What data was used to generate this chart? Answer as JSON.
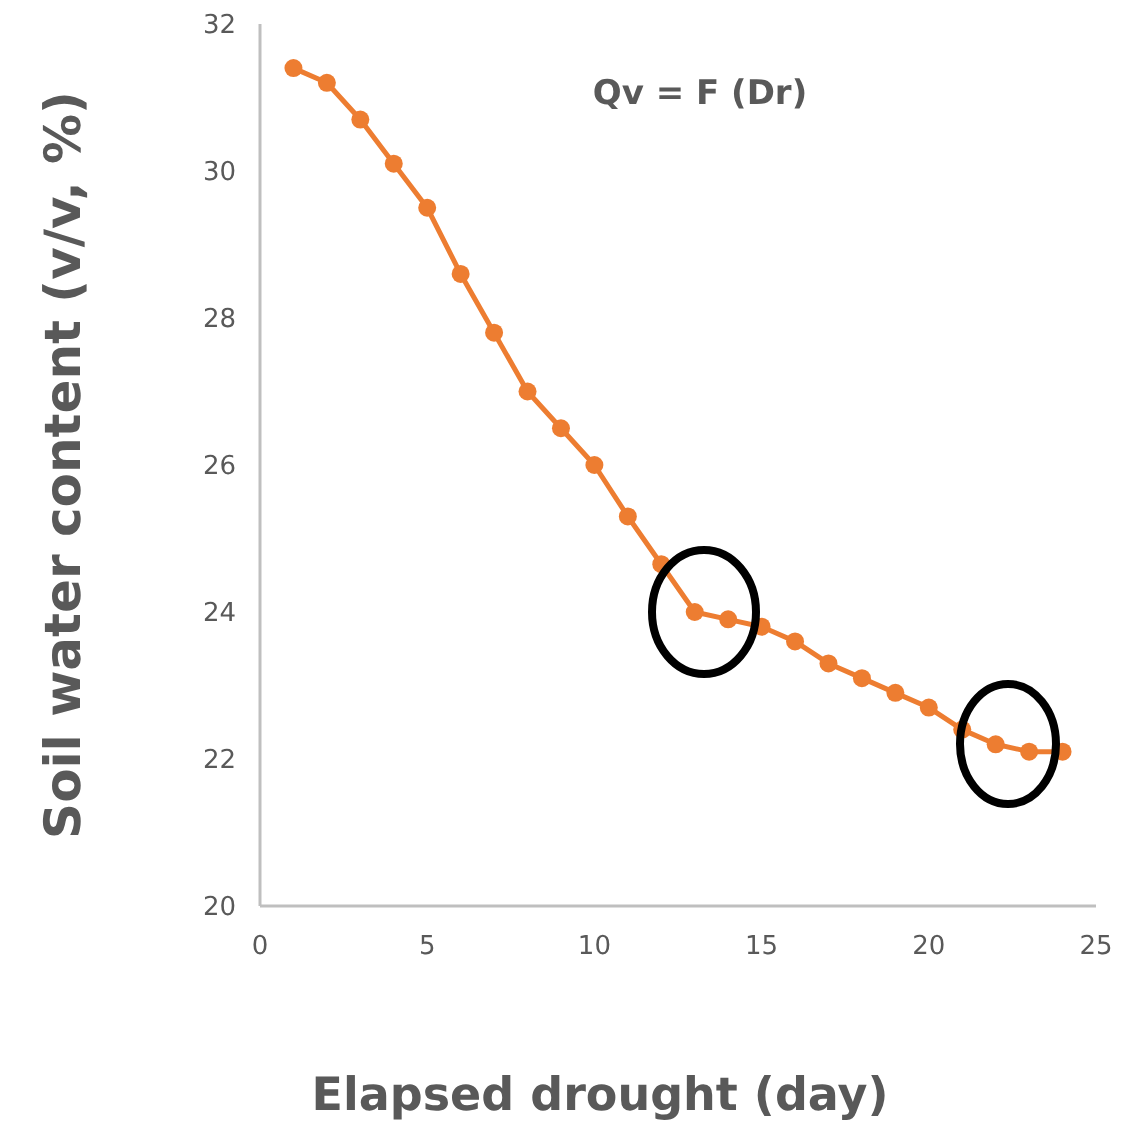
{
  "chart_data": {
    "type": "line",
    "title": "Qv = F (Dr)",
    "xlabel": "Elapsed drought (day)",
    "ylabel": "Soil water content (v/v, %)",
    "x": [
      1,
      2,
      3,
      4,
      5,
      6,
      7,
      8,
      9,
      10,
      11,
      12,
      13,
      14,
      15,
      16,
      17,
      18,
      19,
      20,
      21,
      22,
      23,
      24
    ],
    "series": [
      {
        "color": "#ed7d31",
        "values": [
          31.4,
          31.2,
          30.7,
          30.1,
          29.5,
          28.6,
          27.8,
          27.0,
          26.5,
          26.0,
          25.3,
          24.65,
          24.0,
          23.9,
          23.8,
          23.6,
          23.3,
          23.1,
          22.9,
          22.7,
          22.4,
          22.2,
          22.1,
          22.1
        ]
      }
    ],
    "xlim": [
      0,
      25
    ],
    "xticks": [
      0,
      5,
      10,
      15,
      20,
      25
    ],
    "ylim": [
      20,
      32
    ],
    "yticks": [
      20,
      22,
      24,
      26,
      28,
      30,
      32
    ],
    "marker": "circle",
    "line_style": "solid",
    "grid": false
  }
}
